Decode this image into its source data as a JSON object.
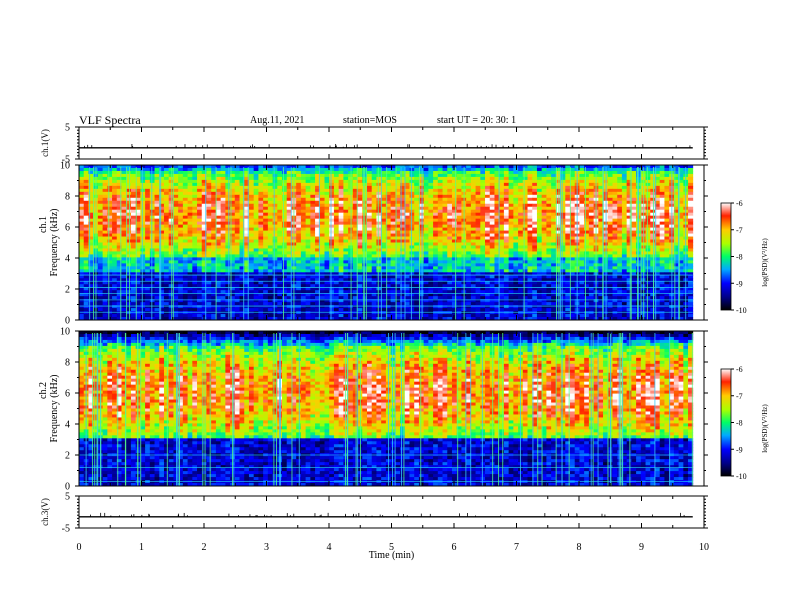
{
  "header": {
    "title": "VLF Spectra",
    "date": "Aug.11, 2021",
    "station": "station=MOS",
    "start_ut": "start  UT =   20: 30: 1"
  },
  "chart_data": [
    {
      "type": "line",
      "ylabel": "ch.1(V)",
      "ylim": [
        -5,
        5
      ],
      "yticks": [
        "5",
        "-5"
      ],
      "xlim": [
        0,
        10
      ],
      "series": [
        {
          "values_description": "flat trace near -1.5 V",
          "x": [
            0,
            9.82
          ],
          "y": [
            -1.5,
            -1.5
          ]
        }
      ]
    },
    {
      "type": "heatmap",
      "ylabel": "ch.1",
      "ylabel2": "Frequency (kHz)",
      "ylim": [
        0,
        10
      ],
      "yticks": [
        "0",
        "2",
        "4",
        "6",
        "8",
        "10"
      ],
      "xlim": [
        0,
        10
      ],
      "x_data_end": 9.82,
      "colorbar": {
        "label": "log(PSD)(V²/Hz)",
        "range": [
          -10,
          -6
        ],
        "ticks": [
          "-6",
          "-7",
          "-8",
          "-9",
          "-10"
        ]
      },
      "bands": {
        "low_kHz": [
          0,
          3
        ],
        "high_kHz": [
          4,
          9.5
        ]
      }
    },
    {
      "type": "heatmap",
      "ylabel": "ch.2",
      "ylabel2": "Frequency (kHz)",
      "ylim": [
        0,
        10
      ],
      "yticks": [
        "0",
        "2",
        "4",
        "6",
        "8",
        "10"
      ],
      "xlim": [
        0,
        10
      ],
      "x_data_end": 9.82,
      "colorbar": {
        "label": "log(PSD)(V²/Hz)",
        "range": [
          -10,
          -6
        ],
        "ticks": [
          "-6",
          "-7",
          "-8",
          "-9",
          "-10"
        ]
      },
      "bands": {
        "low_kHz": [
          0,
          3
        ],
        "high_kHz": [
          3,
          9
        ]
      }
    },
    {
      "type": "line",
      "ylabel": "ch.3(V)",
      "ylim": [
        -5,
        5
      ],
      "yticks": [
        "5",
        "-5"
      ],
      "xlim": [
        0,
        10
      ],
      "xlabel": "Time  (min)",
      "xticks": [
        "0",
        "1",
        "2",
        "3",
        "4",
        "5",
        "6",
        "7",
        "8",
        "9",
        "10"
      ],
      "series": [
        {
          "x": [
            0,
            9.82
          ],
          "y": [
            -1.5,
            -1.5
          ]
        }
      ]
    }
  ]
}
